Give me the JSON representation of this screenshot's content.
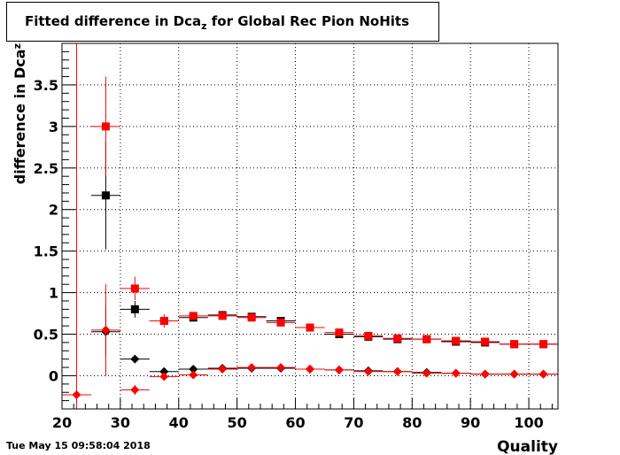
{
  "title": {
    "prefix": "Fitted difference in Dca",
    "subscript": "z",
    "suffix": " for Global Rec Pion NoHits"
  },
  "timestamp": "Tue May 15 09:58:04 2018",
  "chart_data": {
    "type": "scatter",
    "title": "Fitted difference in Dcaz for Global Rec Pion NoHits",
    "xlabel": "Quality",
    "ylabel": "difference in Dcaz",
    "xlim": [
      20,
      105
    ],
    "ylim": [
      -0.4,
      4.0
    ],
    "xticks": [
      20,
      30,
      40,
      50,
      60,
      70,
      80,
      90,
      100
    ],
    "yticks": [
      0,
      0.5,
      1,
      1.5,
      2,
      2.5,
      3,
      3.5
    ],
    "ytick_labels": [
      "0",
      "0.5",
      "1",
      "1.5",
      "2",
      "2.5",
      "3",
      "3.5"
    ],
    "grid": true,
    "bin_half_width": 2.5,
    "series": [
      {
        "marker": "square",
        "color": "#000000",
        "points": [
          {
            "x": 27.5,
            "y": 2.17,
            "err": 0.65
          },
          {
            "x": 32.5,
            "y": 0.8,
            "err": 0.1
          },
          {
            "x": 37.5,
            "y": 0.66,
            "err": 0.04
          },
          {
            "x": 42.5,
            "y": 0.7,
            "err": 0.02
          },
          {
            "x": 47.5,
            "y": 0.73,
            "err": 0.02
          },
          {
            "x": 52.5,
            "y": 0.71,
            "err": 0.02
          },
          {
            "x": 57.5,
            "y": 0.66,
            "err": 0.02
          },
          {
            "x": 62.5,
            "y": 0.58,
            "err": 0.02
          },
          {
            "x": 67.5,
            "y": 0.5,
            "err": 0.02
          },
          {
            "x": 72.5,
            "y": 0.47,
            "err": 0.01
          },
          {
            "x": 77.5,
            "y": 0.44,
            "err": 0.01
          },
          {
            "x": 82.5,
            "y": 0.44,
            "err": 0.01
          },
          {
            "x": 87.5,
            "y": 0.41,
            "err": 0.01
          },
          {
            "x": 92.5,
            "y": 0.4,
            "err": 0.01
          },
          {
            "x": 97.5,
            "y": 0.38,
            "err": 0.01
          },
          {
            "x": 102.5,
            "y": 0.38,
            "err": 0.01
          }
        ]
      },
      {
        "marker": "square",
        "color": "#ff0000",
        "points": [
          {
            "x": 27.5,
            "y": 3.0,
            "err": 0.6
          },
          {
            "x": 32.5,
            "y": 1.05,
            "err": 0.14
          },
          {
            "x": 37.5,
            "y": 0.66,
            "err": 0.08
          },
          {
            "x": 42.5,
            "y": 0.72,
            "err": 0.02
          },
          {
            "x": 47.5,
            "y": 0.72,
            "err": 0.02
          },
          {
            "x": 52.5,
            "y": 0.7,
            "err": 0.02
          },
          {
            "x": 57.5,
            "y": 0.64,
            "err": 0.02
          },
          {
            "x": 62.5,
            "y": 0.58,
            "err": 0.02
          },
          {
            "x": 67.5,
            "y": 0.52,
            "err": 0.02
          },
          {
            "x": 72.5,
            "y": 0.48,
            "err": 0.01
          },
          {
            "x": 77.5,
            "y": 0.45,
            "err": 0.01
          },
          {
            "x": 82.5,
            "y": 0.44,
            "err": 0.01
          },
          {
            "x": 87.5,
            "y": 0.42,
            "err": 0.01
          },
          {
            "x": 92.5,
            "y": 0.41,
            "err": 0.01
          },
          {
            "x": 97.5,
            "y": 0.38,
            "err": 0.01
          },
          {
            "x": 102.5,
            "y": 0.38,
            "err": 0.01
          }
        ]
      },
      {
        "marker": "diamond",
        "color": "#000000",
        "points": [
          {
            "x": 27.5,
            "y": 0.53,
            "err": 0.3
          },
          {
            "x": 32.5,
            "y": 0.2,
            "err": 0.04
          },
          {
            "x": 37.5,
            "y": 0.05,
            "err": 0.01
          },
          {
            "x": 42.5,
            "y": 0.08,
            "err": 0.01
          },
          {
            "x": 47.5,
            "y": 0.09,
            "err": 0.01
          },
          {
            "x": 52.5,
            "y": 0.09,
            "err": 0.01
          },
          {
            "x": 57.5,
            "y": 0.09,
            "err": 0.01
          },
          {
            "x": 62.5,
            "y": 0.08,
            "err": 0.01
          },
          {
            "x": 67.5,
            "y": 0.07,
            "err": 0.01
          },
          {
            "x": 72.5,
            "y": 0.06,
            "err": 0.005
          },
          {
            "x": 77.5,
            "y": 0.05,
            "err": 0.005
          },
          {
            "x": 82.5,
            "y": 0.04,
            "err": 0.005
          },
          {
            "x": 87.5,
            "y": 0.03,
            "err": 0.005
          },
          {
            "x": 92.5,
            "y": 0.02,
            "err": 0.005
          },
          {
            "x": 97.5,
            "y": 0.02,
            "err": 0.005
          },
          {
            "x": 102.5,
            "y": 0.02,
            "err": 0.005
          }
        ]
      },
      {
        "marker": "diamond",
        "color": "#ff0000",
        "points": [
          {
            "x": 22.5,
            "y": -0.23,
            "err": 4.6
          },
          {
            "x": 27.5,
            "y": 0.55,
            "err": 0.55
          },
          {
            "x": 32.5,
            "y": -0.17,
            "err": 0.06
          },
          {
            "x": 37.5,
            "y": -0.01,
            "err": 0.04
          },
          {
            "x": 42.5,
            "y": 0.01,
            "err": 0.01
          },
          {
            "x": 47.5,
            "y": 0.08,
            "err": 0.01
          },
          {
            "x": 52.5,
            "y": 0.1,
            "err": 0.01
          },
          {
            "x": 57.5,
            "y": 0.1,
            "err": 0.01
          },
          {
            "x": 62.5,
            "y": 0.08,
            "err": 0.01
          },
          {
            "x": 67.5,
            "y": 0.07,
            "err": 0.01
          },
          {
            "x": 72.5,
            "y": 0.05,
            "err": 0.005
          },
          {
            "x": 77.5,
            "y": 0.05,
            "err": 0.005
          },
          {
            "x": 82.5,
            "y": 0.03,
            "err": 0.005
          },
          {
            "x": 87.5,
            "y": 0.03,
            "err": 0.005
          },
          {
            "x": 92.5,
            "y": 0.02,
            "err": 0.005
          },
          {
            "x": 97.5,
            "y": 0.02,
            "err": 0.005
          },
          {
            "x": 102.5,
            "y": 0.02,
            "err": 0.005
          }
        ]
      }
    ]
  }
}
